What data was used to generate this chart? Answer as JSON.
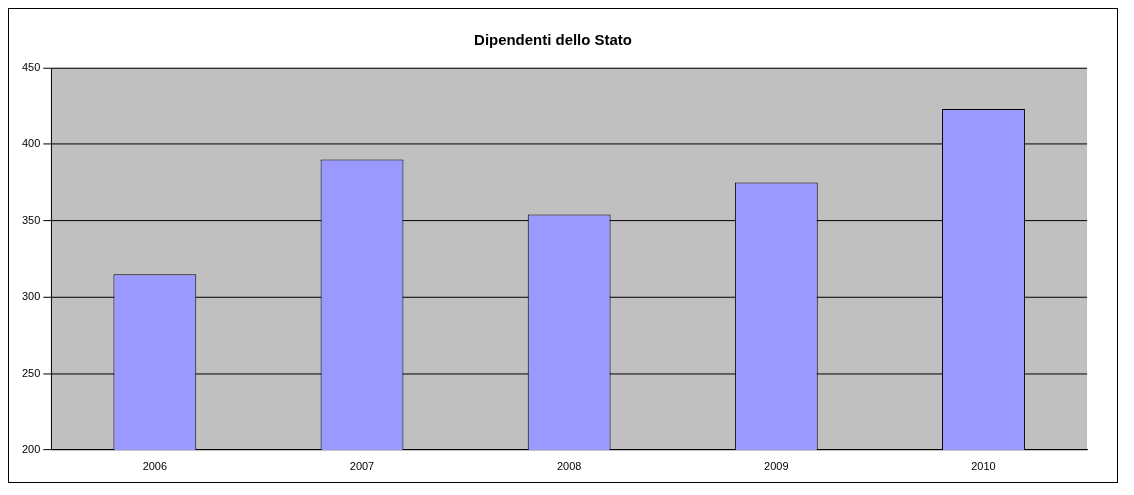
{
  "chart_data": {
    "type": "bar",
    "title": "Dipendenti dello Stato",
    "categories": [
      "2006",
      "2007",
      "2008",
      "2009",
      "2010"
    ],
    "values": [
      315,
      390,
      354,
      375,
      423
    ],
    "color": "#9999ff",
    "ylim": [
      200,
      450
    ],
    "yticks": [
      200,
      250,
      300,
      350,
      400,
      450
    ],
    "grid": "y",
    "legend": false
  }
}
